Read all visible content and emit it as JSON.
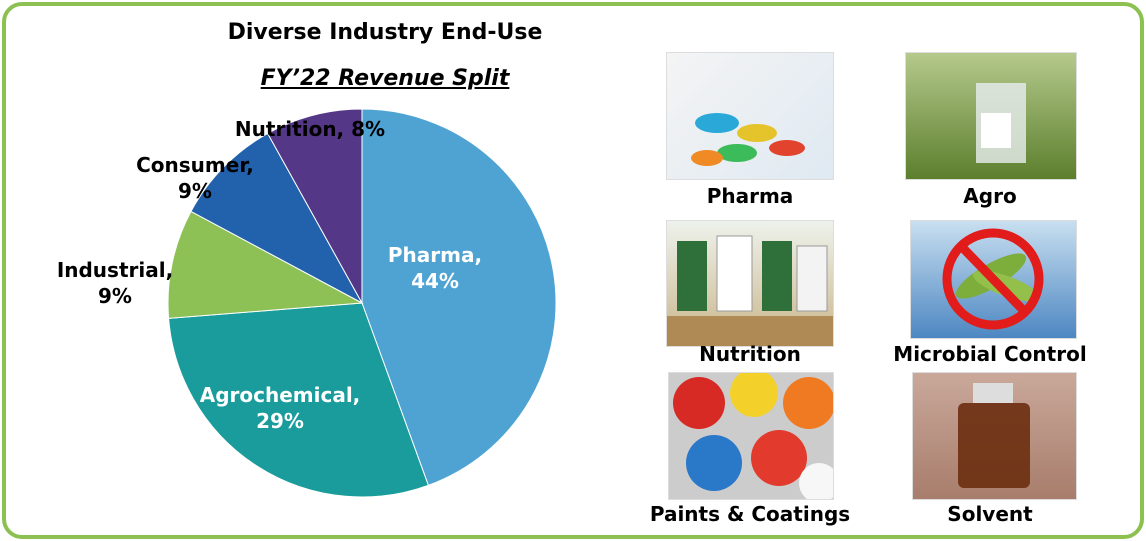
{
  "title": "Diverse Industry End-Use",
  "subtitle": "FY’22 Revenue Split",
  "chart_data": {
    "type": "pie",
    "values": [
      44,
      29,
      9,
      9,
      8
    ],
    "value_labels": [
      "Pharma, 44%",
      "Agrochemical, 29%",
      "Industrial, 9%",
      "Consumer, 9%",
      "Nutrition, 8%"
    ],
    "colors": [
      "#4ea3d3",
      "#1a9c9c",
      "#8dc155",
      "#2261ab",
      "#553787"
    ]
  },
  "tiles": [
    {
      "caption": "Pharma"
    },
    {
      "caption": "Agro"
    },
    {
      "caption": "Nutrition"
    },
    {
      "caption": "Microbial Control"
    },
    {
      "caption": "Paints & Coatings"
    },
    {
      "caption": "Solvent"
    }
  ]
}
